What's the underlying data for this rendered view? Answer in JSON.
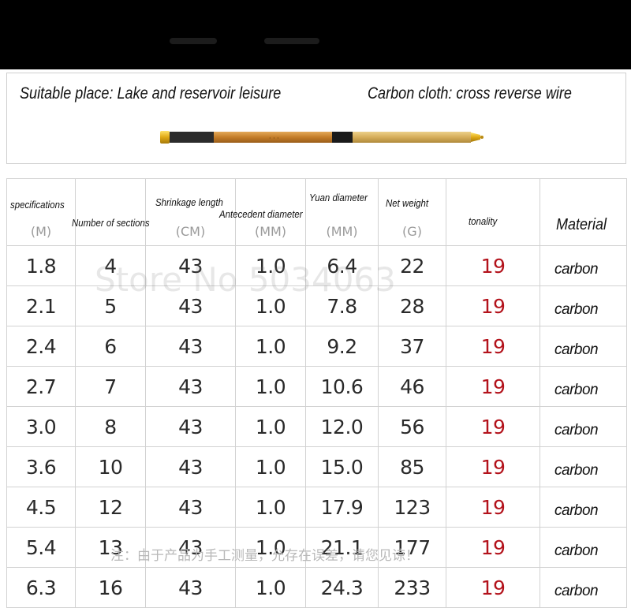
{
  "header": {
    "left_text": "Suitable place: Lake and reservoir leisure",
    "right_text": "Carbon cloth: cross reverse wire"
  },
  "table": {
    "columns": [
      {
        "label": "specifications",
        "unit": "(M)"
      },
      {
        "label": "Number of sections",
        "unit": ""
      },
      {
        "label": "Shrinkage length",
        "unit": "(CM)"
      },
      {
        "label": "Antecedent diameter",
        "unit": "(MM)"
      },
      {
        "label": "Yuan diameter",
        "unit": "(MM)"
      },
      {
        "label": "Net weight",
        "unit": "(G)"
      },
      {
        "label": "tonality",
        "unit": ""
      },
      {
        "label": "Material",
        "unit": ""
      }
    ],
    "rows": [
      [
        "1.8",
        "4",
        "43",
        "1.0",
        "6.4",
        "22",
        "19",
        "carbon"
      ],
      [
        "2.1",
        "5",
        "43",
        "1.0",
        "7.8",
        "28",
        "19",
        "carbon"
      ],
      [
        "2.4",
        "6",
        "43",
        "1.0",
        "9.2",
        "37",
        "19",
        "carbon"
      ],
      [
        "2.7",
        "7",
        "43",
        "1.0",
        "10.6",
        "46",
        "19",
        "carbon"
      ],
      [
        "3.0",
        "8",
        "43",
        "1.0",
        "12.0",
        "56",
        "19",
        "carbon"
      ],
      [
        "3.6",
        "10",
        "43",
        "1.0",
        "15.0",
        "85",
        "19",
        "carbon"
      ],
      [
        "4.5",
        "12",
        "43",
        "1.0",
        "17.9",
        "123",
        "19",
        "carbon"
      ],
      [
        "5.4",
        "13",
        "43",
        "1.0",
        "21.1",
        "177",
        "19",
        "carbon"
      ],
      [
        "6.3",
        "16",
        "43",
        "1.0",
        "24.3",
        "233",
        "19",
        "carbon"
      ]
    ]
  },
  "watermark": "Store No 5034063",
  "footnote": "注：由于产品为手工测量，允存在误差，请您见谅！",
  "colors": {
    "tonality": "#b3121b",
    "rod_bamboo": "#c9852f",
    "rod_handle": "#d9b461",
    "top_bar": "#000000"
  }
}
